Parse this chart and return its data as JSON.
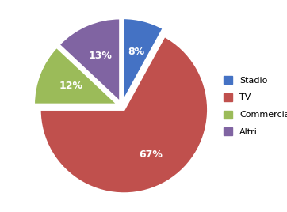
{
  "labels": [
    "Stadio",
    "TV",
    "Commerciali",
    "Altri"
  ],
  "values": [
    8,
    67,
    12,
    13
  ],
  "colors": [
    "#4472C4",
    "#C0504D",
    "#9BBB59",
    "#8064A2"
  ],
  "explode": [
    0.05,
    0.05,
    0.05,
    0.05
  ],
  "startangle": 90,
  "pct_labels": [
    "8%",
    "67%",
    "12%",
    "13%"
  ],
  "background_color": "#FFFFFF",
  "figsize": [
    3.62,
    2.68
  ],
  "dpi": 100
}
